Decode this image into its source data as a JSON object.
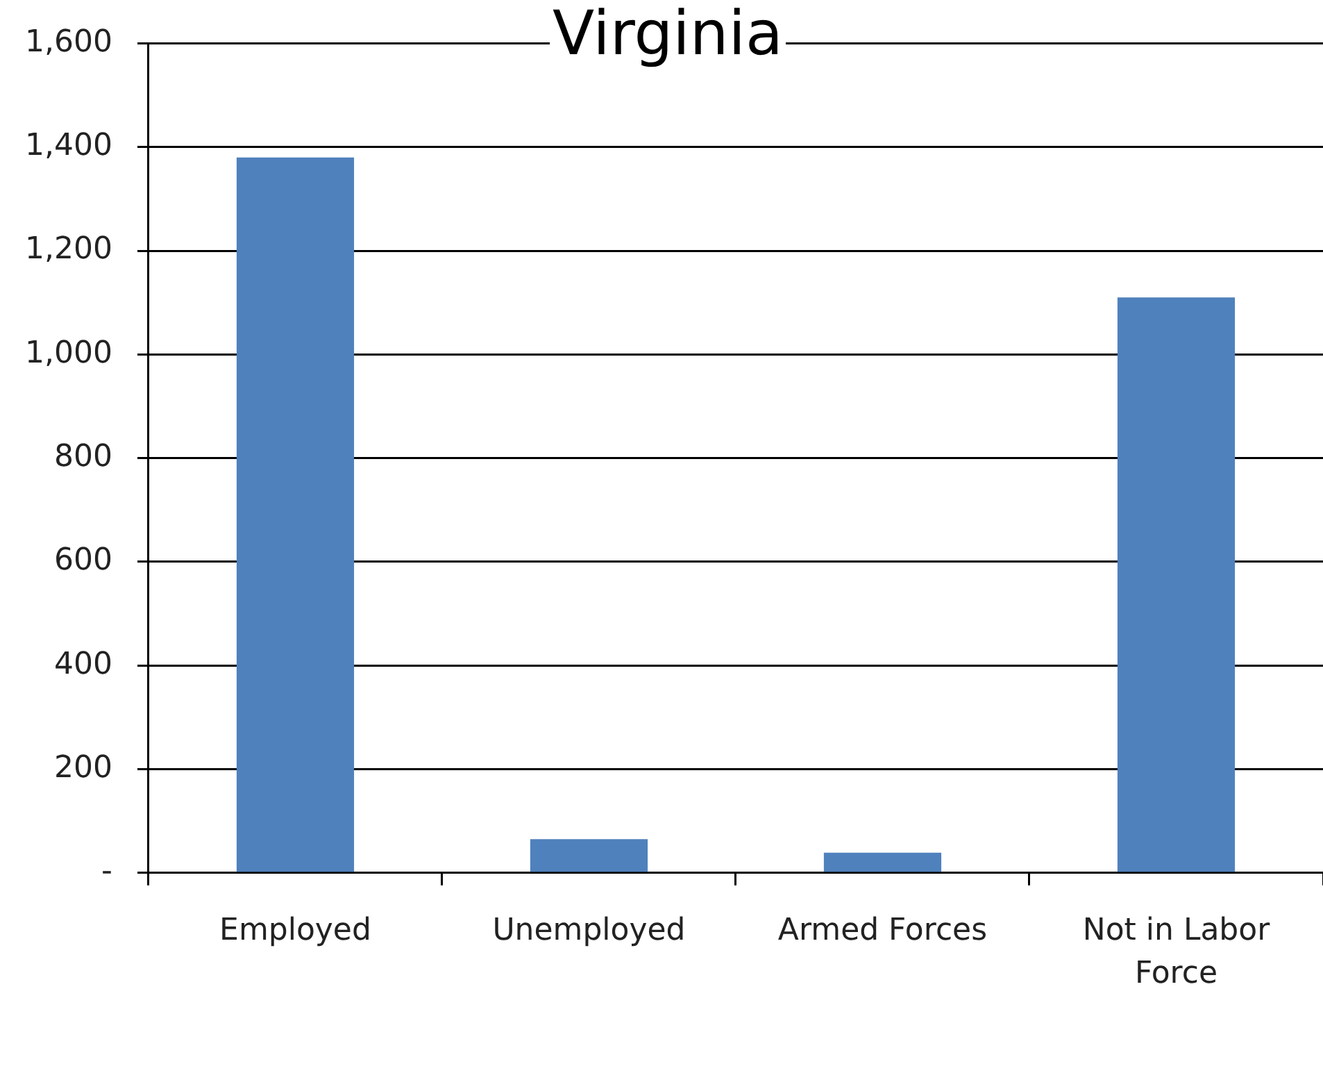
{
  "chart_data": {
    "type": "bar",
    "title": "Virginia",
    "categories": [
      "Employed",
      "Unemployed",
      "Armed Forces",
      "Not in Labor Force"
    ],
    "values": [
      1380,
      65,
      39,
      1110
    ],
    "color": "#4f81bd",
    "ylim": [
      0,
      1600
    ],
    "yticks": [
      {
        "value": 0,
        "label": "-"
      },
      200,
      400,
      600,
      800,
      {
        "value": 1000,
        "label": "1,000"
      },
      {
        "value": 1200,
        "label": "1,200"
      },
      {
        "value": 1400,
        "label": "1,400"
      },
      {
        "value": 1600,
        "label": "1,600"
      }
    ],
    "grid": "y"
  }
}
